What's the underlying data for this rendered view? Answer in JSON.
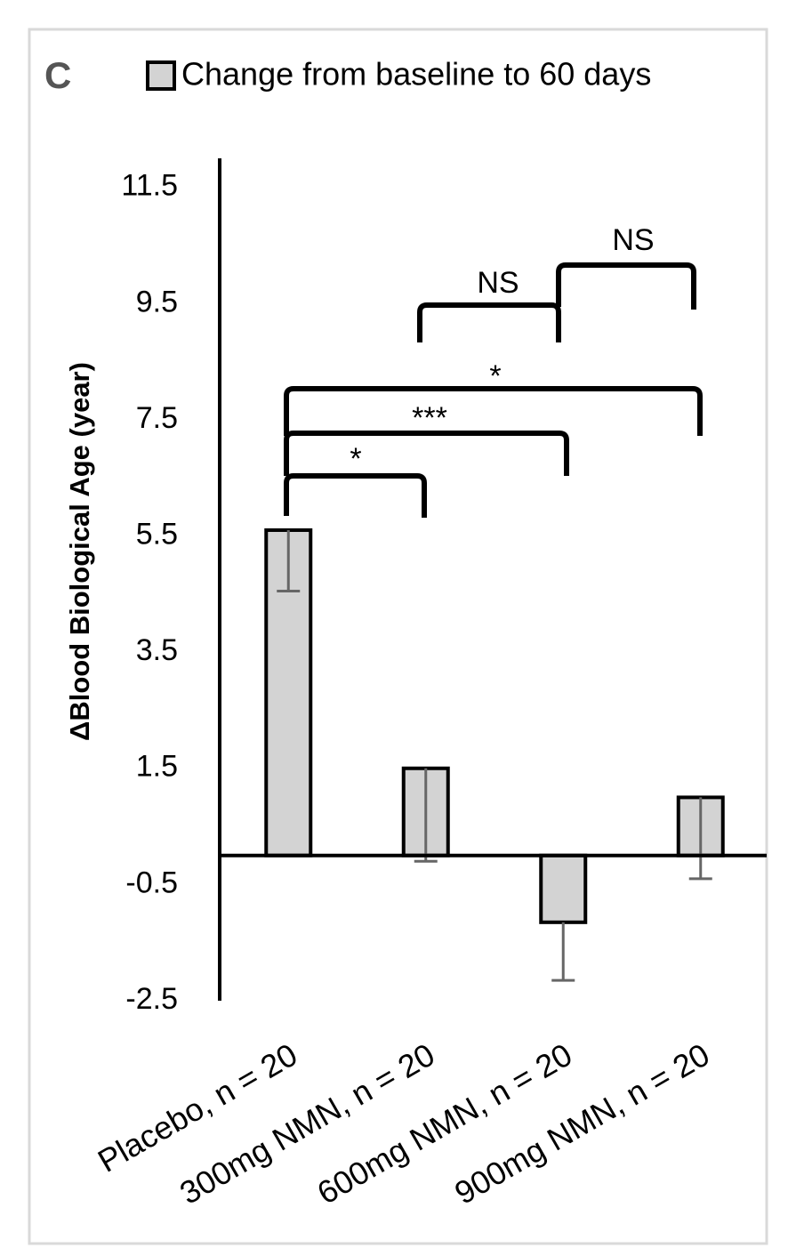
{
  "chart_data": {
    "type": "bar",
    "panel_label": "C",
    "y_label": "ΔBlood Biological Age (year)",
    "categories": [
      "Placebo, n = 20",
      "300mg NMN, n = 20",
      "600mg NMN, n = 20",
      "900mg NMN, n = 20"
    ],
    "series": [
      {
        "name": "Change from baseline to 60 days",
        "color": "#d3d3d3",
        "values": [
          5.6,
          1.5,
          -1.15,
          1.0
        ],
        "errors": [
          1.05,
          1.6,
          1.0,
          1.4
        ]
      }
    ],
    "ylim": [
      -2.5,
      12
    ],
    "yticks": [
      -2.5,
      -0.5,
      1.5,
      3.5,
      5.5,
      7.5,
      9.5,
      11.5
    ],
    "annotations": [
      "*",
      "***",
      "*",
      "NS",
      "NS"
    ]
  }
}
